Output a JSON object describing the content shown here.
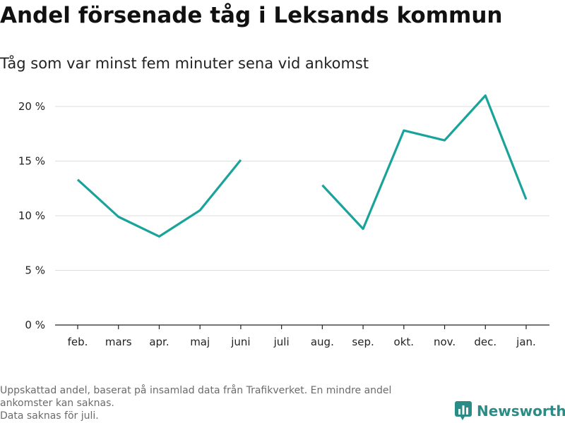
{
  "title": "Andel försenade tåg i Leksands kommun",
  "subtitle": "Tåg som var minst fem minuter sena vid ankomst",
  "footnote": {
    "line1": "Uppskattad andel, baserat på insamlad data från Trafikverket. En mindre andel",
    "line2": "ankomster kan saknas.",
    "line3": "Data saknas för juli."
  },
  "brand": {
    "name": "Newsworthy",
    "icon": "bar-chart-logo-icon",
    "color": "#2a8c86"
  },
  "colors": {
    "line": "#1aa39a",
    "grid": "#dddddd",
    "axis": "#222222",
    "tick_text": "#222222"
  },
  "chart_data": {
    "type": "line",
    "title": "Andel försenade tåg i Leksands kommun",
    "subtitle": "Tåg som var minst fem minuter sena vid ankomst",
    "xlabel": "",
    "ylabel": "",
    "categories": [
      "feb.",
      "mars",
      "apr.",
      "maj",
      "juni",
      "juli",
      "aug.",
      "sep.",
      "okt.",
      "nov.",
      "dec.",
      "jan."
    ],
    "series": [
      {
        "values": [
          13.3,
          9.9,
          8.1,
          10.5,
          15.1,
          null,
          12.8,
          8.8,
          17.8,
          16.9,
          21.0,
          11.5
        ]
      }
    ],
    "ylim": [
      0,
      22
    ],
    "yticks": [
      0,
      5,
      10,
      15,
      20
    ],
    "ytick_labels": [
      "0 %",
      "5 %",
      "10 %",
      "15 %",
      "20 %"
    ],
    "grid": true,
    "legend": "none"
  }
}
